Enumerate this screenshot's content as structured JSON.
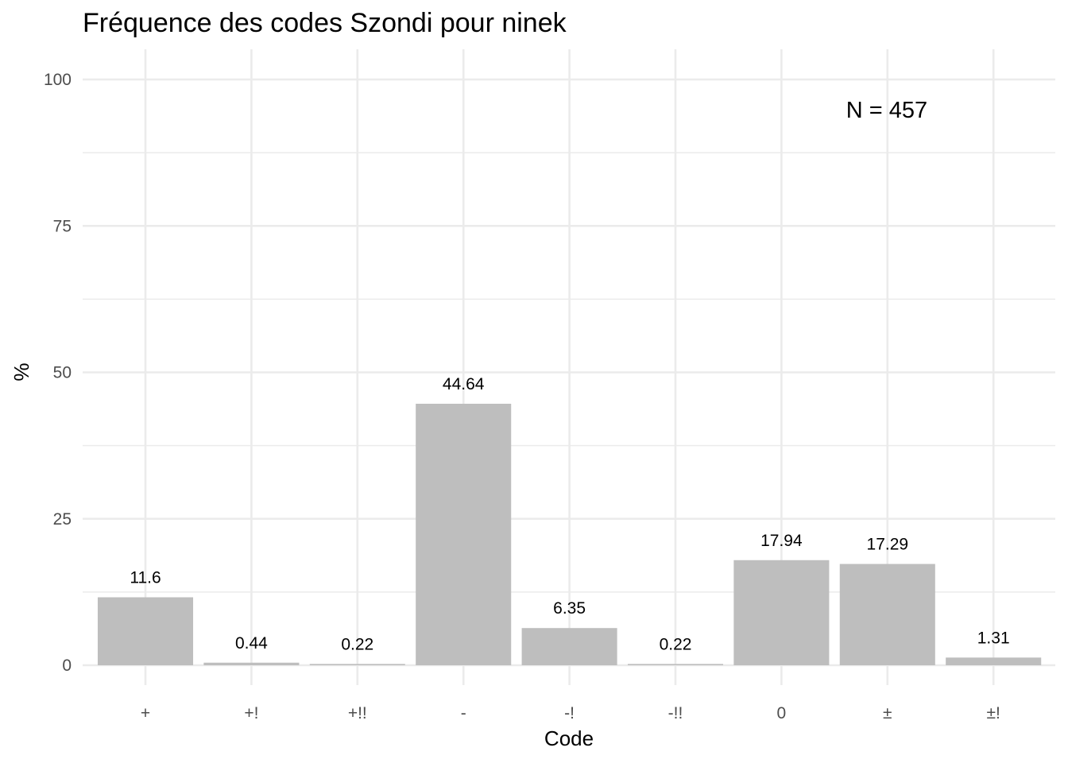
{
  "chart_data": {
    "type": "bar",
    "title": "Fréquence des codes Szondi pour ninek",
    "xlabel": "Code",
    "ylabel": "%",
    "categories": [
      "+",
      "+!",
      "+!!",
      "-",
      "-!",
      "-!!",
      "0",
      "±",
      "±!"
    ],
    "values": [
      11.6,
      0.44,
      0.22,
      44.64,
      6.35,
      0.22,
      17.94,
      17.29,
      1.31
    ],
    "labels": [
      "11.6",
      "0.44",
      "0.22",
      "44.64",
      "6.35",
      "0.22",
      "17.94",
      "17.29",
      "1.31"
    ],
    "ylim": [
      0,
      100
    ],
    "yticks": [
      0,
      25,
      50,
      75,
      100
    ],
    "ytick_labels": [
      "0",
      "25",
      "50",
      "75",
      "100"
    ],
    "grid": true,
    "legend": "none",
    "annotation": "N = 457",
    "bar_color": "#bebebe",
    "grid_color": "#ebebeb"
  }
}
